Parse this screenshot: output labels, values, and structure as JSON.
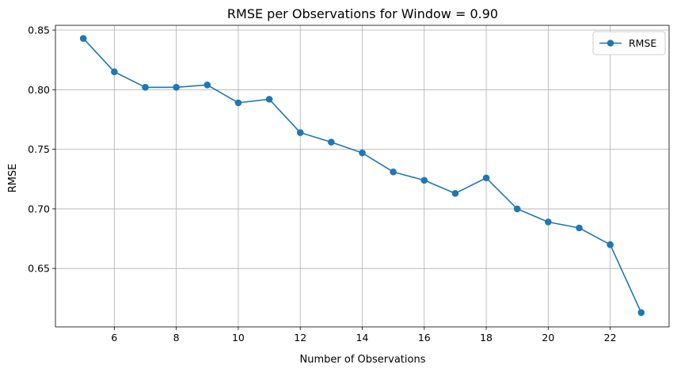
{
  "chart_data": {
    "type": "line",
    "title": "RMSE per Observations for Window = 0.90",
    "xlabel": "Number of Observations",
    "ylabel": "RMSE",
    "xlim": [
      4.1,
      23.9
    ],
    "ylim": [
      0.601,
      0.854
    ],
    "xticks": [
      6,
      8,
      10,
      12,
      14,
      16,
      18,
      20,
      22
    ],
    "xtick_labels": [
      "6",
      "8",
      "10",
      "12",
      "14",
      "16",
      "18",
      "20",
      "22"
    ],
    "yticks": [
      0.65,
      0.7,
      0.75,
      0.8,
      0.85
    ],
    "ytick_labels": [
      "0.65",
      "0.70",
      "0.75",
      "0.80",
      "0.85"
    ],
    "grid": true,
    "legend_position": "top-right",
    "series": [
      {
        "name": "RMSE",
        "color": "#1f77b4",
        "marker": "circle",
        "x": [
          5,
          6,
          7,
          8,
          9,
          10,
          11,
          12,
          13,
          14,
          15,
          16,
          17,
          18,
          19,
          20,
          21,
          22,
          23
        ],
        "y": [
          0.843,
          0.815,
          0.802,
          0.802,
          0.804,
          0.789,
          0.792,
          0.764,
          0.756,
          0.747,
          0.731,
          0.724,
          0.713,
          0.726,
          0.7,
          0.689,
          0.684,
          0.67,
          0.613
        ]
      }
    ]
  }
}
